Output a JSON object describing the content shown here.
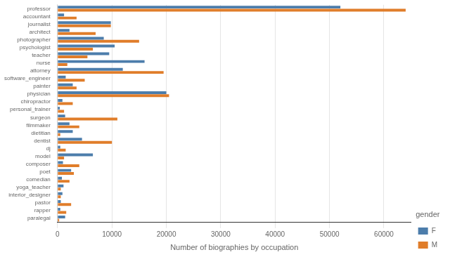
{
  "chart_data": {
    "type": "bar",
    "orientation": "horizontal",
    "xlabel": "Number of biographies by occupation",
    "legend_title": "gender",
    "legend": "lower right",
    "grid": true,
    "categories": [
      "professor",
      "accountant",
      "journalist",
      "architect",
      "photographer",
      "psychologist",
      "teacher",
      "nurse",
      "attorney",
      "software_engineer",
      "painter",
      "physician",
      "chiropractor",
      "personal_trainer",
      "surgeon",
      "filmmaker",
      "dietitian",
      "dentist",
      "dj",
      "model",
      "composer",
      "poet",
      "comedian",
      "yoga_teacher",
      "interior_designer",
      "pastor",
      "rapper",
      "paralegal"
    ],
    "series": [
      {
        "name": "F",
        "color": "#4C7DAB",
        "values": [
          52000,
          1200,
          9800,
          2200,
          8500,
          10500,
          9500,
          16000,
          12000,
          1500,
          2800,
          20000,
          900,
          400,
          1400,
          2200,
          2800,
          4500,
          500,
          6500,
          1000,
          2500,
          800,
          1100,
          900,
          600,
          500,
          1400
        ]
      },
      {
        "name": "M",
        "color": "#E07D2A",
        "values": [
          64000,
          3500,
          9800,
          7000,
          15000,
          6500,
          5500,
          1800,
          19500,
          5000,
          3500,
          20500,
          2800,
          1200,
          11000,
          4000,
          500,
          10000,
          1500,
          1200,
          4000,
          3000,
          2200,
          600,
          600,
          2500,
          1600,
          300
        ]
      }
    ],
    "xlim": [
      0,
      65000
    ],
    "xticks": [
      0,
      10000,
      20000,
      30000,
      40000,
      50000,
      60000
    ]
  }
}
